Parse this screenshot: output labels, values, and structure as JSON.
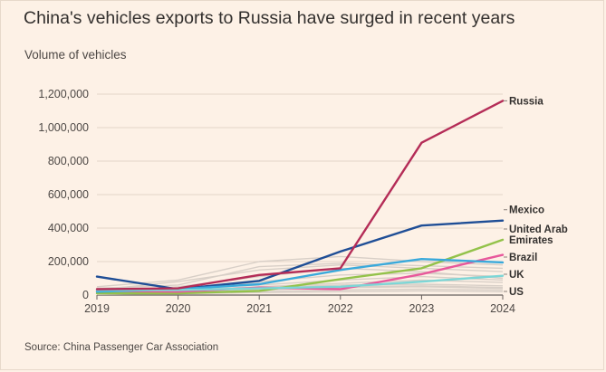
{
  "chart_data": {
    "type": "line",
    "title": "China's vehicles exports to Russia have surged in recent years",
    "ylabel": "Volume of vehicles",
    "xlabel": "",
    "source": "Source: China Passenger Car Association",
    "x": [
      2019,
      2020,
      2021,
      2022,
      2023,
      2024
    ],
    "xticks": [
      "2019",
      "2020",
      "2021",
      "2022",
      "2023",
      "2024"
    ],
    "ylim": [
      0,
      1200000
    ],
    "yticks": [
      0,
      200000,
      400000,
      600000,
      800000,
      1000000,
      1200000
    ],
    "ytick_labels": [
      "0",
      "200,000",
      "400,000",
      "600,000",
      "800,000",
      "1,000,000",
      "1,200,000"
    ],
    "grid": true,
    "background_series_color": "#d8cfc7",
    "background_series": [
      [
        50000,
        90000,
        200000,
        230000,
        200000,
        180000
      ],
      [
        30000,
        80000,
        150000,
        180000,
        160000,
        140000
      ],
      [
        20000,
        50000,
        110000,
        160000,
        140000,
        100000
      ],
      [
        20000,
        40000,
        60000,
        90000,
        110000,
        90000
      ],
      [
        10000,
        30000,
        50000,
        70000,
        90000,
        75000
      ],
      [
        15000,
        25000,
        45000,
        60000,
        65000,
        55000
      ],
      [
        10000,
        20000,
        35000,
        50000,
        55000,
        45000
      ],
      [
        5000,
        15000,
        30000,
        45000,
        50000,
        40000
      ],
      [
        5000,
        10000,
        20000,
        30000,
        35000,
        30000
      ],
      [
        5000,
        8000,
        15000,
        20000,
        25000,
        20000
      ],
      [
        40000,
        60000,
        170000,
        190000,
        175000,
        160000
      ],
      [
        25000,
        30000,
        80000,
        120000,
        130000,
        110000
      ]
    ],
    "series": [
      {
        "name": "Mexico",
        "color": "#1f4e96",
        "values": [
          110000,
          35000,
          85000,
          260000,
          415000,
          445000
        ]
      },
      {
        "name": "United Arab Emirates",
        "color": "#93c24a",
        "values": [
          10000,
          10000,
          25000,
          95000,
          160000,
          330000
        ]
      },
      {
        "name": "Brazil",
        "color": "#e8589b",
        "values": [
          25000,
          20000,
          45000,
          35000,
          125000,
          240000
        ]
      },
      {
        "name": "UK",
        "color": "#39a9db",
        "values": [
          20000,
          35000,
          65000,
          150000,
          215000,
          195000
        ]
      },
      {
        "name": "US",
        "color": "#7dd6d6",
        "values": [
          30000,
          30000,
          40000,
          50000,
          80000,
          115000
        ]
      },
      {
        "name": "Russia",
        "color": "#b42c57",
        "values": [
          35000,
          40000,
          120000,
          160000,
          910000,
          1160000
        ]
      }
    ],
    "label_lines": {
      "Russia": [
        "Russia"
      ],
      "Mexico": [
        "Mexico"
      ],
      "United Arab Emirates": [
        "United Arab",
        "Emirates"
      ],
      "Brazil": [
        "Brazil"
      ],
      "UK": [
        "UK"
      ],
      "US": [
        "US"
      ]
    }
  }
}
